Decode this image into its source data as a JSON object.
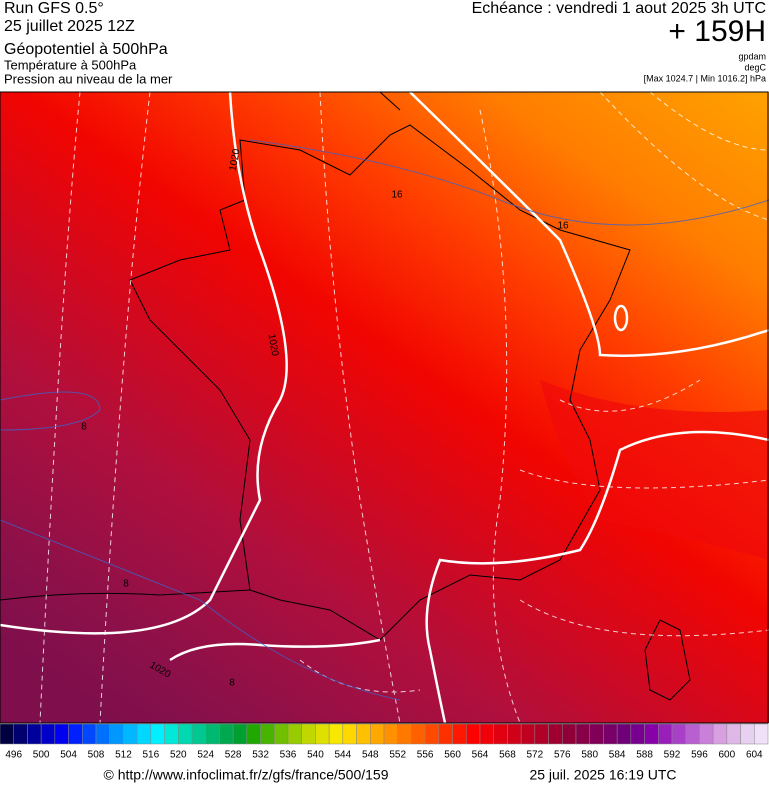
{
  "header": {
    "left": [
      "Run GFS 0.5°",
      "25 juillet 2025 12Z",
      "Géopotentiel à 500hPa",
      "Température à 500hPa",
      "Pression au niveau de la mer"
    ],
    "right": [
      "Echéance : vendredi 1 aout 2025 3h UTC",
      "+ 159H",
      "gpdam",
      "degC",
      "[Max 1024.7 | Min 1016.2] hPa"
    ]
  },
  "map_labels": [
    "1020",
    "1020",
    "1020",
    "16",
    "16",
    "8",
    "8",
    "8"
  ],
  "colorbar": {
    "labels": [
      496,
      500,
      504,
      508,
      512,
      516,
      520,
      524,
      528,
      532,
      536,
      540,
      544,
      548,
      552,
      556,
      560,
      564,
      568,
      572,
      576,
      580,
      584,
      588,
      592,
      596,
      600,
      604
    ],
    "colors": [
      "#000040",
      "#00006e",
      "#00009a",
      "#0000c8",
      "#0000f0",
      "#0020ff",
      "#0048ff",
      "#0070ff",
      "#0098ff",
      "#00b8ff",
      "#00d8ff",
      "#00f0ff",
      "#00e8d8",
      "#00d8b0",
      "#00c890",
      "#00b870",
      "#00a850",
      "#00a030",
      "#20a800",
      "#48b400",
      "#70c000",
      "#98cc00",
      "#c0d800",
      "#e0e000",
      "#f8e800",
      "#ffd800",
      "#ffc000",
      "#ffa800",
      "#ff9000",
      "#ff7800",
      "#ff6000",
      "#ff4800",
      "#ff3000",
      "#ff1800",
      "#ff0000",
      "#f00008",
      "#e00010",
      "#d00018",
      "#c00020",
      "#b00028",
      "#a00030",
      "#900038",
      "#880048",
      "#800058",
      "#780068",
      "#700078",
      "#780090",
      "#8800a8",
      "#9820b8",
      "#a840c8",
      "#b860d0",
      "#c880d8",
      "#d8a0e0",
      "#e0b8e8",
      "#e8d0f0",
      "#f0e0f8"
    ]
  },
  "footer": {
    "source": "© http://www.infoclimat.fr/z/gfs/france/500/159",
    "date": "25 juil. 2025 16:19 UTC"
  }
}
